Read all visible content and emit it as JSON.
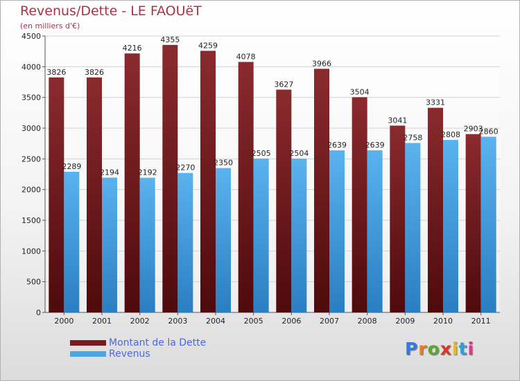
{
  "header": {
    "title": "Revenus/Dette - LE FAOUëT",
    "subtitle": "(en milliers d'€)"
  },
  "chart_data": {
    "type": "bar",
    "categories": [
      "2000",
      "2001",
      "2002",
      "2003",
      "2004",
      "2005",
      "2006",
      "2007",
      "2008",
      "2009",
      "2010",
      "2011"
    ],
    "series": [
      {
        "name": "Montant de la Dette",
        "values": [
          3826,
          3826,
          4216,
          4355,
          4259,
          4078,
          3627,
          3966,
          3504,
          3041,
          3331,
          2903
        ],
        "color": "#7a1a1e"
      },
      {
        "name": "Revenus",
        "values": [
          2289,
          2194,
          2192,
          2270,
          2350,
          2505,
          2504,
          2639,
          2639,
          2758,
          2808,
          2860
        ],
        "color": "#4aa6e6"
      }
    ],
    "yticks": [
      0,
      500,
      1000,
      1500,
      2000,
      2500,
      3000,
      3500,
      4000,
      4500
    ],
    "ylim": [
      0,
      4500
    ],
    "grid": true,
    "legend_position": "bottom-left"
  },
  "legend": {
    "items": [
      {
        "label": "Montant de la Dette",
        "color": "#7a1a1e"
      },
      {
        "label": "Revenus",
        "color": "#4aa6e6"
      }
    ]
  },
  "logo": {
    "letters": [
      "P",
      "r",
      "o",
      "x",
      "i",
      "t",
      "i"
    ],
    "colors": [
      "#3a78d8",
      "#e87d1e",
      "#5aa832",
      "#d83a2a",
      "#e8b81e",
      "#3a9ad8",
      "#d83a8a"
    ]
  }
}
